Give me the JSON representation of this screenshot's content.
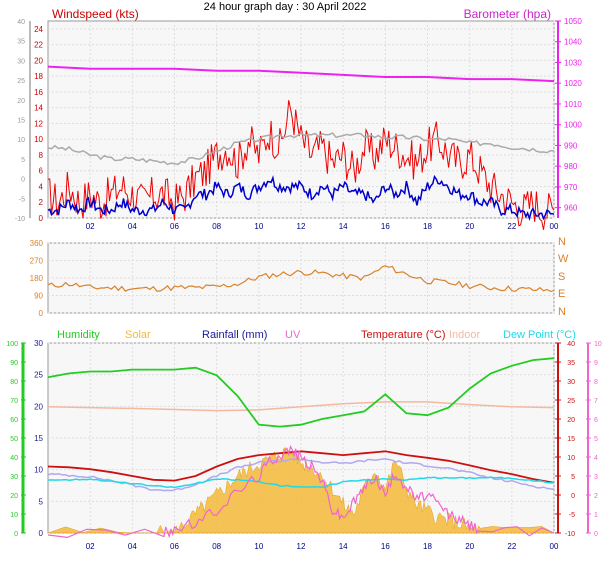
{
  "title": "24 hour graph day : 30 April 2022",
  "colors": {
    "wind_speed": "#ee0000",
    "wind_avg": "#0000cc",
    "barometer": "#ee22ee",
    "wind_dir": "#d9822b",
    "humidity": "#22cc22",
    "solar": "#f5b93a",
    "rainfall": "#1a1a99",
    "uv": "#ee66cc",
    "temperature": "#cc1111",
    "indoor": "#f4b8a0",
    "dew_point": "#22d8e8",
    "grey": "#aaaaaa"
  },
  "chart_data": [
    {
      "type": "line",
      "panel": "wind-barometer",
      "title": "24 hour graph day : 30 April 2022",
      "x_ticks": [
        "02",
        "04",
        "06",
        "08",
        "10",
        "12",
        "14",
        "16",
        "18",
        "20",
        "22",
        "00"
      ],
      "left_axis": {
        "label": "Windspeed (kts)",
        "ylim": [
          0,
          25
        ],
        "ticks": [
          "0",
          "2",
          "4",
          "6",
          "8",
          "10",
          "12",
          "14",
          "16",
          "18",
          "20",
          "22",
          "24"
        ]
      },
      "outer_left_axis": {
        "ylim": [
          -10,
          40
        ],
        "ticks": [
          "-10",
          "-5",
          "0",
          "5",
          "10",
          "15",
          "20",
          "25",
          "30",
          "35",
          "40"
        ]
      },
      "right_axis": {
        "label": "Barometer (hpa)",
        "ylim": [
          955,
          1050
        ],
        "ticks": [
          "960",
          "970",
          "980",
          "990",
          "1000",
          "1010",
          "1020",
          "1030",
          "1040",
          "1050"
        ]
      },
      "series": [
        {
          "key": "gust",
          "color_key": "wind_speed",
          "axis": "left",
          "x": [
            0,
            0.5,
            1,
            1.5,
            2,
            2.5,
            3,
            3.5,
            4,
            4.5,
            5,
            5.5,
            6,
            6.5,
            7,
            7.5,
            8,
            8.5,
            9,
            9.5,
            10,
            10.5,
            11,
            11.5,
            12,
            12.5,
            13,
            13.5,
            14,
            14.5,
            15,
            15.5,
            16,
            16.5,
            17,
            17.5,
            18,
            18.5,
            19,
            19.5,
            20,
            20.5,
            21,
            21.5,
            22,
            22.5,
            23,
            23.5,
            24
          ],
          "y": [
            3,
            2,
            4,
            2,
            3,
            2,
            3,
            4,
            3,
            2,
            3,
            3,
            2,
            3,
            5,
            6,
            8,
            9,
            7,
            10,
            8,
            11,
            9,
            14,
            10,
            8,
            9,
            7,
            8,
            6,
            9,
            8,
            10,
            9,
            8,
            7,
            9,
            10,
            8,
            7,
            8,
            6,
            4,
            3,
            2,
            1,
            2,
            1,
            1
          ]
        },
        {
          "key": "average",
          "color_key": "wind_avg",
          "axis": "left",
          "x": [
            0,
            0.5,
            1,
            1.5,
            2,
            2.5,
            3,
            3.5,
            4,
            4.5,
            5,
            5.5,
            6,
            6.5,
            7,
            7.5,
            8,
            8.5,
            9,
            9.5,
            10,
            10.5,
            11,
            11.5,
            12,
            12.5,
            13,
            13.5,
            14,
            14.5,
            15,
            15.5,
            16,
            16.5,
            17,
            17.5,
            18,
            18.5,
            19,
            19.5,
            20,
            20.5,
            21,
            21.5,
            22,
            22.5,
            23,
            23.5,
            24
          ],
          "y": [
            1,
            1,
            2,
            1,
            2,
            1,
            1,
            2,
            1,
            1,
            1,
            2,
            1,
            1,
            3,
            3,
            4,
            3,
            4,
            3,
            4,
            5,
            4,
            4,
            4,
            3,
            4,
            3,
            4,
            3,
            3,
            2,
            4,
            3,
            4,
            2,
            4,
            5,
            4,
            3,
            3,
            2,
            2,
            1,
            1,
            0.5,
            0.5,
            0.5,
            0.5
          ]
        },
        {
          "key": "barometer",
          "color_key": "barometer",
          "axis": "right",
          "x": [
            0,
            2,
            4,
            6,
            8,
            10,
            12,
            14,
            16,
            18,
            20,
            22,
            24
          ],
          "y": [
            1028,
            1027,
            1027,
            1027,
            1026,
            1026,
            1025,
            1024,
            1023,
            1023,
            1022,
            1022,
            1021
          ]
        },
        {
          "key": "grey",
          "color_key": "grey",
          "axis": "outer_left",
          "x": [
            0,
            1,
            2,
            3,
            4,
            5,
            6,
            7,
            8,
            9,
            10,
            11,
            12,
            13,
            14,
            15,
            16,
            17,
            18,
            19,
            20,
            21,
            22,
            23,
            24
          ],
          "y": [
            8,
            7.5,
            6,
            5,
            5,
            4.5,
            4,
            5,
            7,
            9,
            10,
            11,
            11,
            11,
            11,
            11,
            10.5,
            10.5,
            10,
            10,
            9,
            9,
            8,
            7.5,
            7
          ]
        }
      ]
    },
    {
      "type": "scatter",
      "panel": "wind-direction",
      "x_ticks": [],
      "y_ticks": [
        "0",
        "90",
        "180",
        "270",
        "360"
      ],
      "compass": [
        "N",
        "W",
        "S",
        "E",
        "N"
      ],
      "ylim": [
        0,
        360
      ],
      "series": [
        {
          "key": "direction",
          "color_key": "wind_dir",
          "x": [
            0,
            1,
            2,
            3,
            4,
            5,
            6,
            7,
            8,
            9,
            10,
            11,
            12,
            13,
            14,
            15,
            16,
            17,
            18,
            19,
            20,
            21,
            22,
            23,
            24
          ],
          "y": [
            140,
            150,
            130,
            130,
            125,
            125,
            130,
            130,
            135,
            150,
            185,
            200,
            210,
            205,
            190,
            180,
            240,
            200,
            165,
            155,
            140,
            130,
            125,
            120,
            115
          ]
        }
      ]
    },
    {
      "type": "area",
      "panel": "climate",
      "x_ticks": [
        "02",
        "04",
        "06",
        "08",
        "10",
        "12",
        "14",
        "16",
        "18",
        "20",
        "22",
        "00"
      ],
      "legend": [
        "Humidity",
        "Solar",
        "Rainfall (mm)",
        "UV",
        "Temperature (°C)",
        "Indoor",
        "Dew Point (°C)"
      ],
      "left_axes": {
        "humidity_ticks": [
          "0",
          "10",
          "20",
          "30",
          "40",
          "50",
          "60",
          "70",
          "80",
          "90",
          "100"
        ],
        "rain_ticks": [
          "0",
          "5",
          "10",
          "15",
          "20",
          "25",
          "30"
        ]
      },
      "right_axes": {
        "temperature_ticks": [
          "-10",
          "-5",
          "0",
          "5",
          "10",
          "15",
          "20",
          "25",
          "30",
          "35",
          "40"
        ],
        "uv_ticks": [
          "0",
          "1",
          "2",
          "3",
          "4",
          "5",
          "6",
          "7",
          "8",
          "9",
          "10"
        ]
      },
      "series": [
        {
          "key": "humidity",
          "name": "Humidity",
          "color_key": "humidity",
          "axis": "humidity",
          "ylim": [
            0,
            100
          ],
          "x": [
            0,
            1,
            2,
            3,
            4,
            5,
            6,
            7,
            8,
            9,
            10,
            11,
            12,
            13,
            14,
            15,
            16,
            17,
            18,
            19,
            20,
            21,
            22,
            23,
            24
          ],
          "y": [
            82,
            84,
            85,
            85,
            86,
            86,
            86,
            87,
            83,
            72,
            57,
            56,
            57,
            60,
            62,
            64,
            73,
            63,
            62,
            66,
            76,
            84,
            88,
            91,
            92
          ]
        },
        {
          "key": "indoor",
          "name": "Indoor",
          "color_key": "indoor",
          "axis": "temperature",
          "ylim": [
            -10,
            40
          ],
          "x": [
            0,
            2,
            4,
            6,
            8,
            10,
            12,
            14,
            16,
            18,
            20,
            22,
            24
          ],
          "y": [
            23.2,
            23.0,
            22.8,
            22.5,
            22.2,
            22.4,
            23.2,
            24.0,
            24.5,
            24.5,
            23.8,
            23.2,
            23.0
          ]
        },
        {
          "key": "temperature",
          "name": "Temperature (°C)",
          "color_key": "temperature",
          "axis": "temperature",
          "ylim": [
            -10,
            40
          ],
          "x": [
            0,
            1,
            2,
            3,
            4,
            5,
            6,
            7,
            8,
            9,
            10,
            11,
            12,
            13,
            14,
            15,
            16,
            17,
            18,
            19,
            20,
            21,
            22,
            23,
            24
          ],
          "y": [
            7.5,
            7.3,
            6.8,
            6.0,
            5.0,
            4.0,
            3.8,
            5.0,
            7.5,
            9.5,
            10.5,
            11.0,
            11.5,
            11.0,
            10.5,
            11.0,
            11.5,
            10.5,
            9.8,
            9.0,
            7.8,
            6.5,
            5.5,
            4.2,
            3.2
          ]
        },
        {
          "key": "feels",
          "color_key": "grey",
          "axis": "temperature",
          "ylim": [
            -10,
            40
          ],
          "x": [
            0,
            1,
            2,
            3,
            4,
            5,
            6,
            7,
            8,
            9,
            10,
            11,
            12,
            13,
            14,
            15,
            16,
            17,
            18,
            19,
            20,
            21,
            22,
            23,
            24
          ],
          "y": [
            5.5,
            5.2,
            4.8,
            3.8,
            2.6,
            1.4,
            1.2,
            2.8,
            5.0,
            7.2,
            8.5,
            9.0,
            9.5,
            8.6,
            8.3,
            9.0,
            9.5,
            8.4,
            7.8,
            7.0,
            5.8,
            4.5,
            3.5,
            2.4,
            1.5
          ]
        },
        {
          "key": "dew_point",
          "name": "Dew Point (°C)",
          "color_key": "dew_point",
          "axis": "temperature",
          "ylim": [
            -10,
            40
          ],
          "x": [
            0,
            1,
            2,
            3,
            4,
            5,
            6,
            7,
            8,
            9,
            10,
            11,
            12,
            13,
            14,
            15,
            16,
            17,
            18,
            19,
            20,
            21,
            22,
            23,
            24
          ],
          "y": [
            4.0,
            4.0,
            4.2,
            3.6,
            3.0,
            2.4,
            2.0,
            3.0,
            4.2,
            4.0,
            3.5,
            2.5,
            2.2,
            2.0,
            3.5,
            4.0,
            4.2,
            4.0,
            4.5,
            4.5,
            4.5,
            4.6,
            4.4,
            3.8,
            3.2
          ]
        },
        {
          "key": "solar",
          "name": "Solar",
          "color_key": "solar",
          "axis": "rain",
          "ylim": [
            0,
            30
          ],
          "x": [
            0,
            5,
            6,
            6.5,
            7,
            7.5,
            8,
            8.5,
            9,
            9.5,
            10,
            10.5,
            11,
            11.5,
            12,
            12.5,
            13,
            13.5,
            14,
            14.5,
            15,
            15.5,
            16,
            16.5,
            17,
            17.5,
            18,
            18.5,
            19,
            19.5,
            20,
            20.5,
            24
          ],
          "y": [
            0,
            0,
            0,
            1.5,
            3.0,
            4.5,
            6.0,
            7.5,
            9.0,
            10.0,
            11.0,
            11.5,
            12.5,
            13.0,
            11.0,
            10.5,
            9.0,
            7.0,
            4.5,
            3.0,
            7.0,
            10.0,
            7.0,
            11.5,
            7.0,
            4.5,
            3.5,
            2.5,
            2.0,
            1.5,
            0.8,
            0.3,
            0
          ]
        },
        {
          "key": "uv",
          "name": "UV",
          "color_key": "uv",
          "axis": "uv",
          "ylim": [
            0,
            10
          ],
          "x": [
            0,
            5.5,
            6,
            7,
            8,
            9,
            10,
            10.5,
            11,
            11.5,
            12,
            12.5,
            13,
            13.5,
            14,
            14.5,
            15,
            15.5,
            16,
            16.5,
            17,
            17.5,
            18,
            18.5,
            19,
            19.5,
            20,
            20.5,
            24
          ],
          "y": [
            0,
            0,
            0.2,
            0.5,
            1.2,
            2.2,
            3.0,
            3.8,
            4.1,
            4.4,
            4.0,
            3.5,
            2.8,
            1.2,
            0.8,
            1.6,
            2.4,
            3.0,
            2.0,
            3.2,
            2.4,
            1.8,
            2.0,
            1.5,
            1.0,
            0.7,
            0.4,
            0.2,
            0
          ]
        }
      ]
    }
  ]
}
